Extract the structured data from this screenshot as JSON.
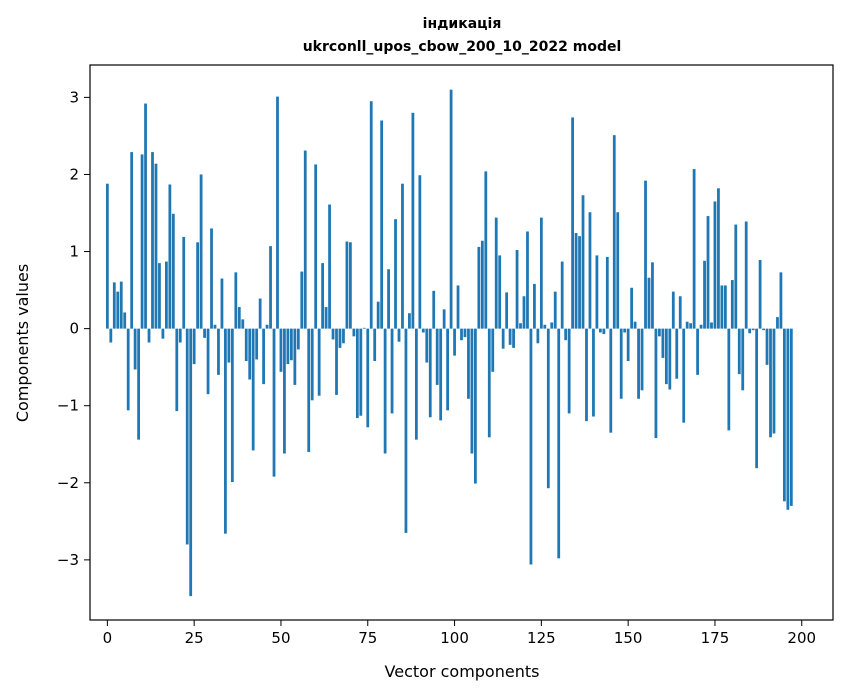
{
  "chart_data": {
    "type": "bar",
    "title_line1": "індикація",
    "title_line2": "ukrconll_upos_cbow_200_10_2022 model",
    "xlabel": "Vector components",
    "ylabel": "Components values",
    "xlim": [
      -5,
      209
    ],
    "ylim": [
      -3.78,
      3.42
    ],
    "xticks": [
      0,
      25,
      50,
      75,
      100,
      125,
      150,
      175,
      200
    ],
    "yticks": [
      -3,
      -2,
      -1,
      0,
      1,
      2,
      3
    ],
    "xtick_labels": [
      "0",
      "25",
      "50",
      "75",
      "100",
      "125",
      "150",
      "175",
      "200"
    ],
    "ytick_labels": [
      "−3",
      "−2",
      "−1",
      "0",
      "1",
      "2",
      "3"
    ],
    "bar_color": "#1f77b4",
    "grid": false,
    "values": [
      1.88,
      -0.18,
      0.6,
      0.48,
      0.61,
      0.21,
      -1.06,
      2.29,
      -0.53,
      -1.44,
      2.26,
      2.92,
      -0.18,
      2.29,
      2.14,
      0.85,
      -0.13,
      0.87,
      1.87,
      1.49,
      -1.07,
      -0.18,
      1.19,
      -2.8,
      -3.47,
      -0.46,
      1.12,
      2.0,
      -0.12,
      -0.85,
      1.3,
      0.05,
      -0.6,
      0.65,
      -2.66,
      -0.44,
      -1.99,
      0.73,
      0.28,
      0.12,
      -0.42,
      -0.66,
      -1.58,
      -0.4,
      0.39,
      -0.72,
      0.05,
      1.07,
      -1.92,
      3.01,
      -0.56,
      -1.62,
      -0.46,
      -0.41,
      -0.73,
      -0.27,
      0.74,
      2.31,
      -1.6,
      -0.93,
      2.13,
      -0.87,
      0.85,
      0.28,
      1.61,
      -0.14,
      -0.86,
      -0.25,
      -0.19,
      1.13,
      1.12,
      -0.1,
      -1.16,
      -1.13,
      0.01,
      -1.28,
      2.95,
      -0.42,
      0.35,
      2.7,
      -1.62,
      0.77,
      -1.1,
      1.42,
      -0.17,
      1.88,
      -2.65,
      0.2,
      2.8,
      -1.44,
      1.99,
      -0.05,
      -0.44,
      -1.15,
      0.49,
      -0.73,
      -1.19,
      0.25,
      -1.06,
      3.1,
      -0.35,
      0.56,
      -0.15,
      -0.11,
      -0.91,
      -1.62,
      -2.01,
      1.06,
      1.14,
      2.04,
      -1.41,
      -0.56,
      1.44,
      0.95,
      -0.26,
      0.47,
      -0.21,
      -0.25,
      1.02,
      0.07,
      0.42,
      1.26,
      -3.06,
      0.58,
      -0.19,
      1.44,
      0.05,
      -2.07,
      0.08,
      0.48,
      -2.98,
      0.87,
      -0.15,
      -1.1,
      2.74,
      1.24,
      1.2,
      1.73,
      -1.2,
      1.51,
      -1.14,
      0.95,
      -0.05,
      -0.07,
      0.93,
      -1.35,
      2.51,
      1.51,
      -0.91,
      -0.05,
      -0.42,
      0.53,
      0.09,
      -0.91,
      -0.8,
      1.92,
      0.66,
      0.86,
      -1.42,
      -0.1,
      -0.38,
      -0.72,
      -0.79,
      0.48,
      -0.65,
      0.42,
      -1.22,
      0.09,
      0.07,
      2.07,
      -0.6,
      0.05,
      0.88,
      1.46,
      0.08,
      1.65,
      1.82,
      0.56,
      0.56,
      -1.32,
      0.63,
      1.35,
      -0.59,
      -0.8,
      1.39,
      -0.06,
      -0.02,
      -1.81,
      0.89,
      -0.02,
      -0.47,
      -1.41,
      -1.36,
      0.15,
      0.73,
      -2.24,
      -2.35,
      -2.3
    ]
  }
}
